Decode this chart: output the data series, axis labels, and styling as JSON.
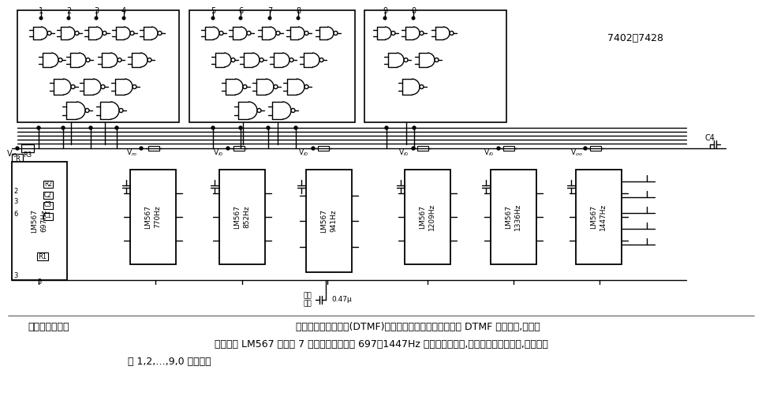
{
  "title": "单音频解码电路",
  "desc1": "单音频解码电路    该图为用于双音多频(DTMF)解码器的电路。由外线送来的 DTMF 调制信号,引至由",
  "desc2": "集成电路 LM567 构成的 7 个中心频率分别为 697～1447Hz 单音窄带滤波器,然后两两送人与非门,输出相应",
  "desc3": "的 1,2,…,9,0 等数字。",
  "desc_title": "单音频解码电路",
  "gate_label": "7402或7428",
  "chip_labels": [
    "LM567\n697Hz",
    "LM567\n770Hz",
    "LM567\n852Hz",
    "LM567\n941Hz",
    "LM567\n1209Hz",
    "LM567\n1336Hz",
    "LM567\n1447Hz"
  ],
  "output_numbers": [
    "1",
    "2",
    "3",
    "4",
    "5",
    "6",
    "7",
    "8",
    "9",
    "0"
  ],
  "input_label1": "输入",
  "input_label2": "信号",
  "cap_label": "0.47μ",
  "c4_label": "C4",
  "bg_color": "#ffffff",
  "line_color": "#000000"
}
